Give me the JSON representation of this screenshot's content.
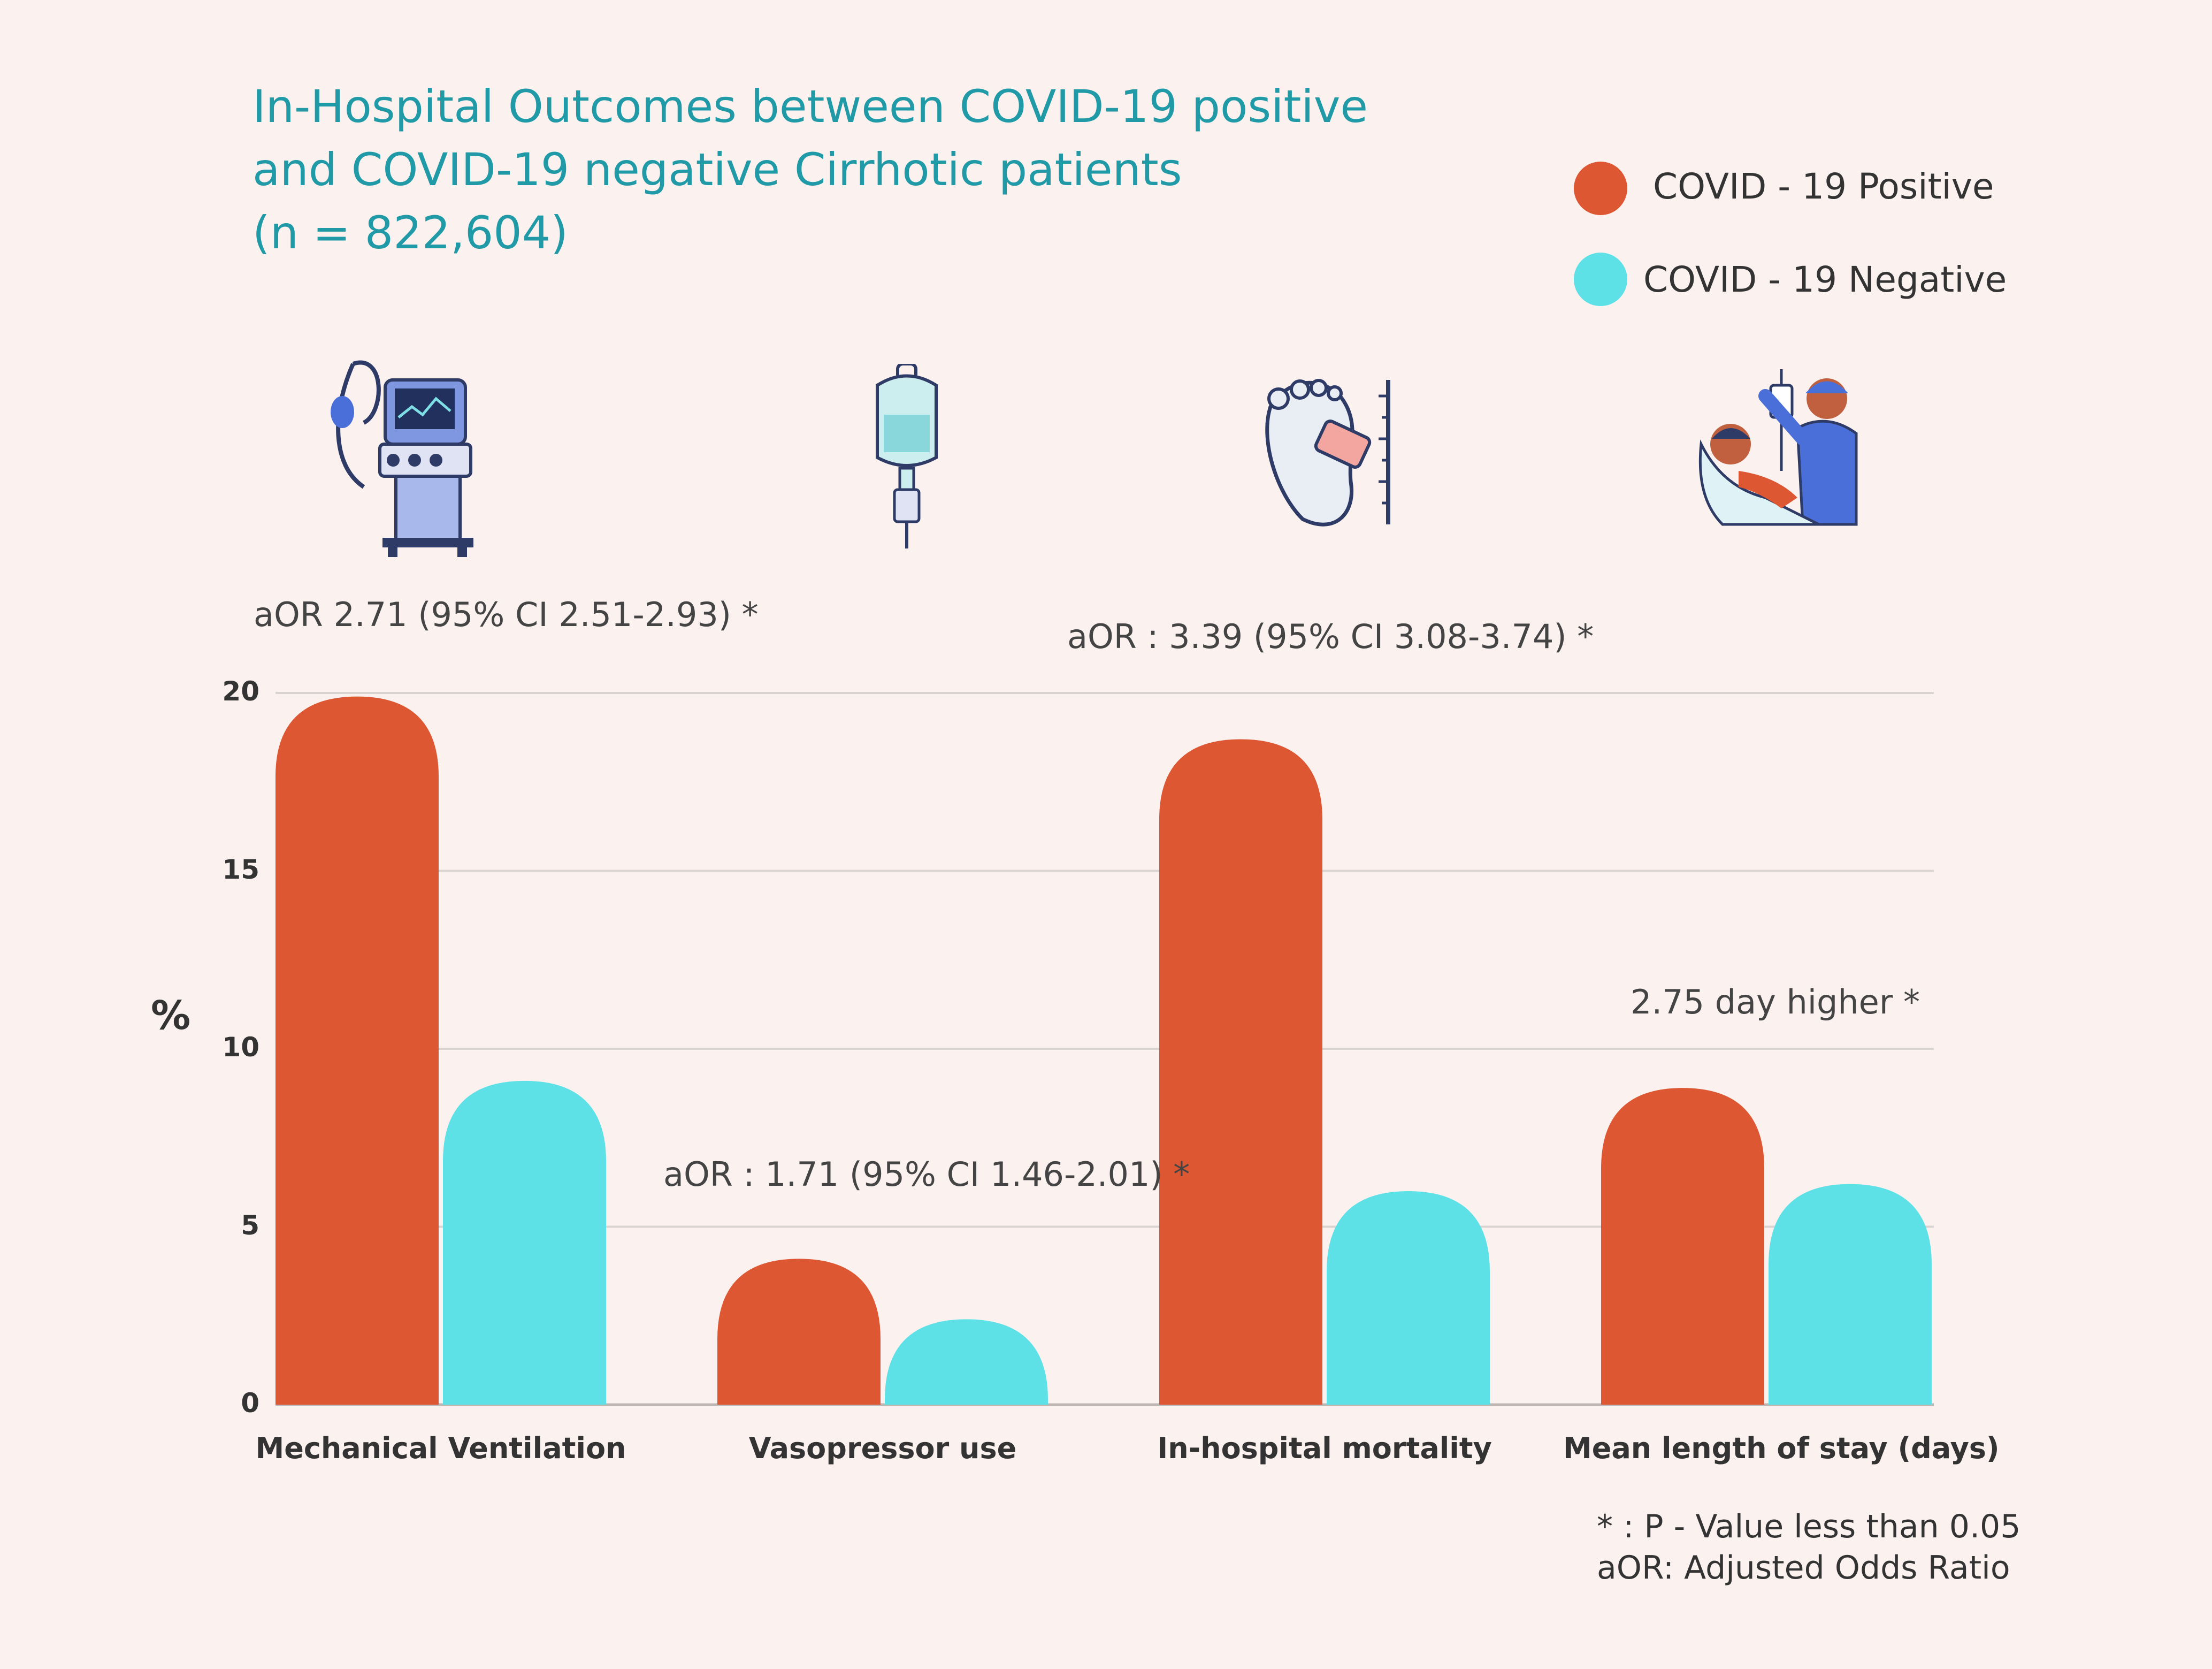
{
  "title": {
    "line1": "In-Hospital Outcomes between COVID-19 positive",
    "line2": "and COVID-19 negative Cirrhotic patients",
    "line3": "(n = 822,604)"
  },
  "legend": {
    "positive": "COVID - 19 Positive",
    "negative": "COVID - 19 Negative"
  },
  "icons": [
    "ventilator-icon",
    "iv-drip-icon",
    "toe-tag-icon",
    "patient-doctor-icon"
  ],
  "annotations": {
    "ventilation": "aOR 2.71 (95% CI 2.51-2.93) *",
    "vasopressor": "aOR : 1.71 (95% CI 1.46-2.01) *",
    "mortality": "aOR : 3.39 (95% CI 3.08-3.74) *",
    "stay": "2.75 day higher *"
  },
  "footnotes": {
    "line1": "* : P - Value  less than 0.05",
    "line2": "aOR: Adjusted Odds Ratio"
  },
  "colors": {
    "positive": "#dd5733",
    "negative": "#5ee1e6",
    "title": "#1f9aa6",
    "background": "#fbf2f0",
    "grid": "#d9d4d2"
  },
  "chart_data": {
    "type": "bar",
    "title": "In-Hospital Outcomes between COVID-19 positive and COVID-19 negative Cirrhotic patients (n = 822,604)",
    "ylabel": "%",
    "xlabel": "",
    "ylim": [
      0,
      20
    ],
    "yticks": [
      0,
      5,
      10,
      15,
      20
    ],
    "grid": true,
    "legend_position": "top-right",
    "categories": [
      "Mechanical Ventilation",
      "Vasopressor use",
      "In-hospital mortality",
      "Mean length of stay (days)"
    ],
    "series": [
      {
        "name": "COVID - 19 Positive",
        "values": [
          19.9,
          4.1,
          18.7,
          8.9
        ]
      },
      {
        "name": "COVID - 19 Negative",
        "values": [
          9.1,
          2.4,
          6.0,
          6.2
        ]
      }
    ]
  }
}
